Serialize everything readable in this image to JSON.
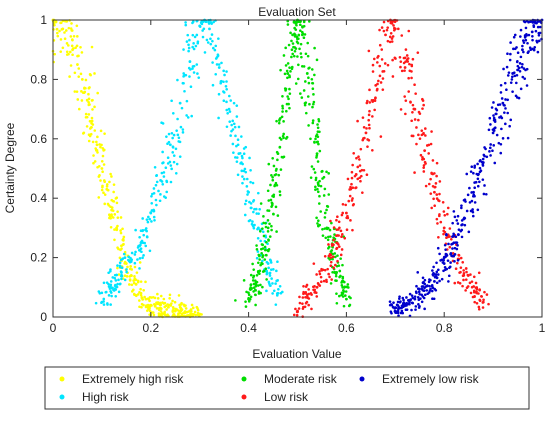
{
  "chart_data": {
    "type": "scatter",
    "title": "Evaluation Set",
    "xlabel": "Evaluation Value",
    "ylabel": "Certainty Degree",
    "xlim": [
      0,
      1
    ],
    "ylim": [
      0,
      1
    ],
    "x_ticks": [
      0,
      0.2,
      0.4,
      0.6,
      0.8,
      1
    ],
    "y_ticks": [
      0,
      0.2,
      0.4,
      0.6,
      0.8,
      1
    ],
    "x_tick_labels": [
      "0",
      "0.2",
      "0.4",
      "0.6",
      "0.8",
      "1"
    ],
    "y_tick_labels": [
      "0",
      "0.2",
      "0.4",
      "0.6",
      "0.8",
      "1"
    ],
    "grid": false,
    "legend_position": "bottom-outside",
    "series": [
      {
        "name": "Extremely high risk",
        "color": "#ffff00",
        "peak_x": 0.0,
        "x": [
          0.0,
          0.02,
          0.04,
          0.05,
          0.06,
          0.07,
          0.08,
          0.09,
          0.1,
          0.11,
          0.12,
          0.13,
          0.14,
          0.15,
          0.16,
          0.17,
          0.18,
          0.19,
          0.2,
          0.22,
          0.25,
          0.3
        ],
        "y": [
          1.0,
          0.97,
          0.9,
          0.85,
          0.8,
          0.73,
          0.66,
          0.58,
          0.5,
          0.43,
          0.36,
          0.3,
          0.24,
          0.18,
          0.14,
          0.11,
          0.08,
          0.06,
          0.04,
          0.03,
          0.02,
          0.01
        ]
      },
      {
        "name": "High risk",
        "color": "#00e5ff",
        "peak_x": 0.31,
        "x": [
          0.1,
          0.14,
          0.18,
          0.2,
          0.22,
          0.24,
          0.26,
          0.28,
          0.3,
          0.31,
          0.32,
          0.34,
          0.36,
          0.38,
          0.4,
          0.42,
          0.44,
          0.46
        ],
        "y": [
          0.05,
          0.15,
          0.25,
          0.35,
          0.46,
          0.58,
          0.72,
          0.86,
          0.98,
          1.0,
          0.97,
          0.84,
          0.7,
          0.55,
          0.42,
          0.3,
          0.18,
          0.08
        ]
      },
      {
        "name": "Moderate risk",
        "color": "#00dd00",
        "peak_x": 0.5,
        "x": [
          0.4,
          0.42,
          0.44,
          0.46,
          0.48,
          0.49,
          0.5,
          0.51,
          0.52,
          0.54,
          0.56,
          0.58,
          0.6
        ],
        "y": [
          0.06,
          0.15,
          0.3,
          0.55,
          0.82,
          0.95,
          1.0,
          0.95,
          0.82,
          0.55,
          0.3,
          0.15,
          0.06
        ]
      },
      {
        "name": "Low risk",
        "color": "#ff1a1a",
        "peak_x": 0.69,
        "x": [
          0.5,
          0.54,
          0.58,
          0.6,
          0.62,
          0.64,
          0.66,
          0.68,
          0.69,
          0.7,
          0.72,
          0.74,
          0.76,
          0.78,
          0.8,
          0.84,
          0.88
        ],
        "y": [
          0.02,
          0.1,
          0.25,
          0.35,
          0.48,
          0.62,
          0.78,
          0.95,
          1.0,
          0.97,
          0.84,
          0.7,
          0.56,
          0.42,
          0.3,
          0.14,
          0.05
        ]
      },
      {
        "name": "Extremely low risk",
        "color": "#0000cc",
        "peak_x": 1.0,
        "x": [
          0.7,
          0.74,
          0.78,
          0.8,
          0.82,
          0.84,
          0.86,
          0.88,
          0.9,
          0.92,
          0.94,
          0.96,
          0.98,
          1.0
        ],
        "y": [
          0.02,
          0.06,
          0.12,
          0.18,
          0.25,
          0.33,
          0.42,
          0.52,
          0.62,
          0.72,
          0.82,
          0.9,
          0.96,
          1.0
        ]
      }
    ]
  }
}
